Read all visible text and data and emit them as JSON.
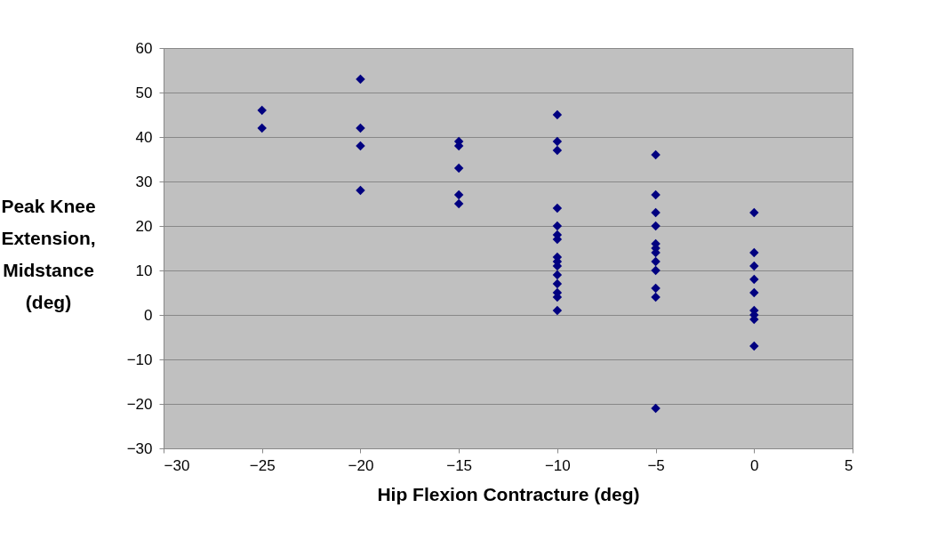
{
  "chart_data": {
    "type": "scatter",
    "xlabel": "Hip Flexion Contracture (deg)",
    "ylabel": "Peak Knee Extension, Midstance (deg)",
    "x": [
      -25,
      -25,
      -20,
      -20,
      -20,
      -20,
      -15,
      -15,
      -15,
      -15,
      -15,
      -10,
      -10,
      -10,
      -10,
      -10,
      -10,
      -10,
      -10,
      -10,
      -10,
      -10,
      -10,
      -10,
      -10,
      -10,
      -5,
      -5,
      -5,
      -5,
      -5,
      -5,
      -5,
      -5,
      -5,
      -5,
      -5,
      -5,
      0,
      0,
      0,
      0,
      0,
      0,
      0,
      0,
      0
    ],
    "series": [
      {
        "color": "#000080",
        "values": [
          46,
          42,
          53,
          42,
          38,
          28,
          39,
          38,
          33,
          27,
          25,
          45,
          39,
          37,
          24,
          20,
          18,
          17,
          13,
          12,
          11,
          9,
          7,
          5,
          4,
          1,
          36,
          27,
          23,
          20,
          16,
          15,
          14,
          12,
          10,
          6,
          4,
          -21,
          23,
          14,
          11,
          8,
          5,
          1,
          0,
          -1,
          -7
        ]
      }
    ],
    "marker": "diamond",
    "grid": "y",
    "xlim": [
      -30,
      5
    ],
    "xticks": [
      -30,
      -25,
      -20,
      -15,
      -10,
      -5,
      0,
      5
    ],
    "ylim": [
      -30,
      60
    ],
    "yticks": [
      -30,
      -20,
      -10,
      0,
      10,
      20,
      30,
      40,
      50,
      60
    ]
  }
}
